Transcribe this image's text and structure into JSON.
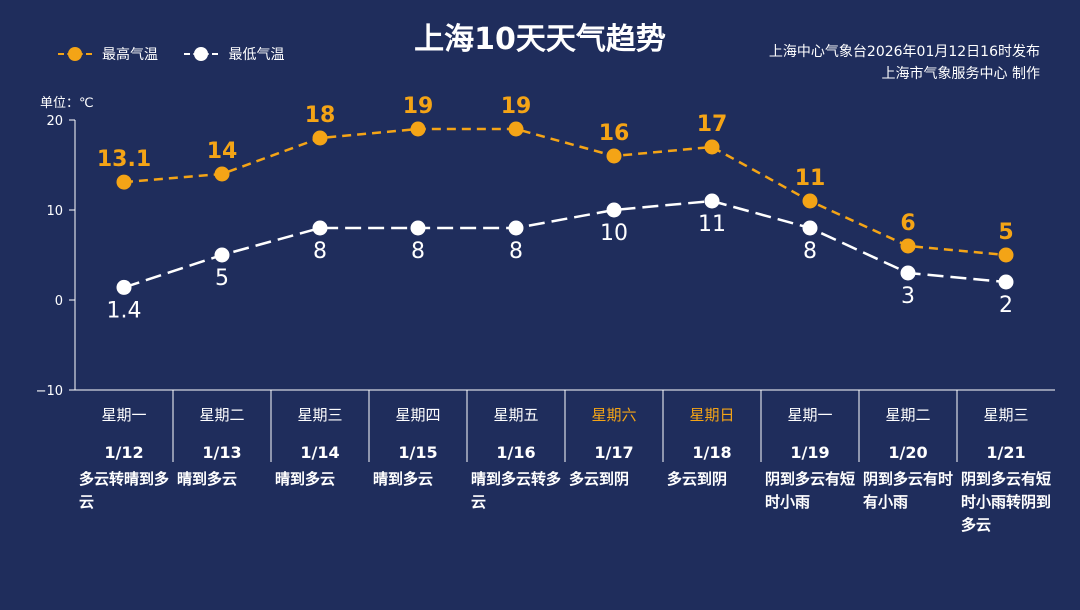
{
  "title": "上海10天天气趋势",
  "issuer": [
    "上海中心气象台2026年01月12日16时发布",
    "上海市气象服务中心  制作"
  ],
  "unit_label": "单位：℃",
  "colors": {
    "background": "#1f2d5c",
    "high": "#f4a416",
    "low": "#ffffff",
    "weekend": "#f4a416"
  },
  "chart_data": {
    "type": "line",
    "ylim": [
      -10,
      20
    ],
    "yticks": [
      20,
      10,
      0,
      -10
    ],
    "ytick_labels": [
      "20",
      "10",
      "0",
      "−10"
    ],
    "categories": [
      "1/12",
      "1/13",
      "1/14",
      "1/15",
      "1/16",
      "1/17",
      "1/18",
      "1/19",
      "1/20",
      "1/21"
    ],
    "series": [
      {
        "name": "最高气温",
        "color": "#f4a416",
        "values": [
          13.1,
          14,
          18,
          19,
          19,
          16,
          17,
          11,
          6,
          5
        ],
        "labels": [
          "13.1",
          "14",
          "18",
          "19",
          "19",
          "16",
          "17",
          "11",
          "6",
          "5"
        ]
      },
      {
        "name": "最低气温",
        "color": "#ffffff",
        "values": [
          1.4,
          5,
          8,
          8,
          8,
          10,
          11,
          8,
          3,
          2
        ],
        "labels": [
          "1.4",
          "5",
          "8",
          "8",
          "8",
          "10",
          "11",
          "8",
          "3",
          "2"
        ]
      }
    ]
  },
  "days": [
    {
      "weekday": "星期一",
      "date": "1/12",
      "weather": "多云转晴到多云",
      "weekend": false
    },
    {
      "weekday": "星期二",
      "date": "1/13",
      "weather": "晴到多云",
      "weekend": false
    },
    {
      "weekday": "星期三",
      "date": "1/14",
      "weather": "晴到多云",
      "weekend": false
    },
    {
      "weekday": "星期四",
      "date": "1/15",
      "weather": "晴到多云",
      "weekend": false
    },
    {
      "weekday": "星期五",
      "date": "1/16",
      "weather": "晴到多云转多云",
      "weekend": false
    },
    {
      "weekday": "星期六",
      "date": "1/17",
      "weather": "多云到阴",
      "weekend": true
    },
    {
      "weekday": "星期日",
      "date": "1/18",
      "weather": "多云到阴",
      "weekend": true
    },
    {
      "weekday": "星期一",
      "date": "1/19",
      "weather": "阴到多云有短时小雨",
      "weekend": false
    },
    {
      "weekday": "星期二",
      "date": "1/20",
      "weather": "阴到多云有时有小雨",
      "weekend": false
    },
    {
      "weekday": "星期三",
      "date": "1/21",
      "weather": "阴到多云有短时小雨转阴到多云",
      "weekend": false
    }
  ]
}
